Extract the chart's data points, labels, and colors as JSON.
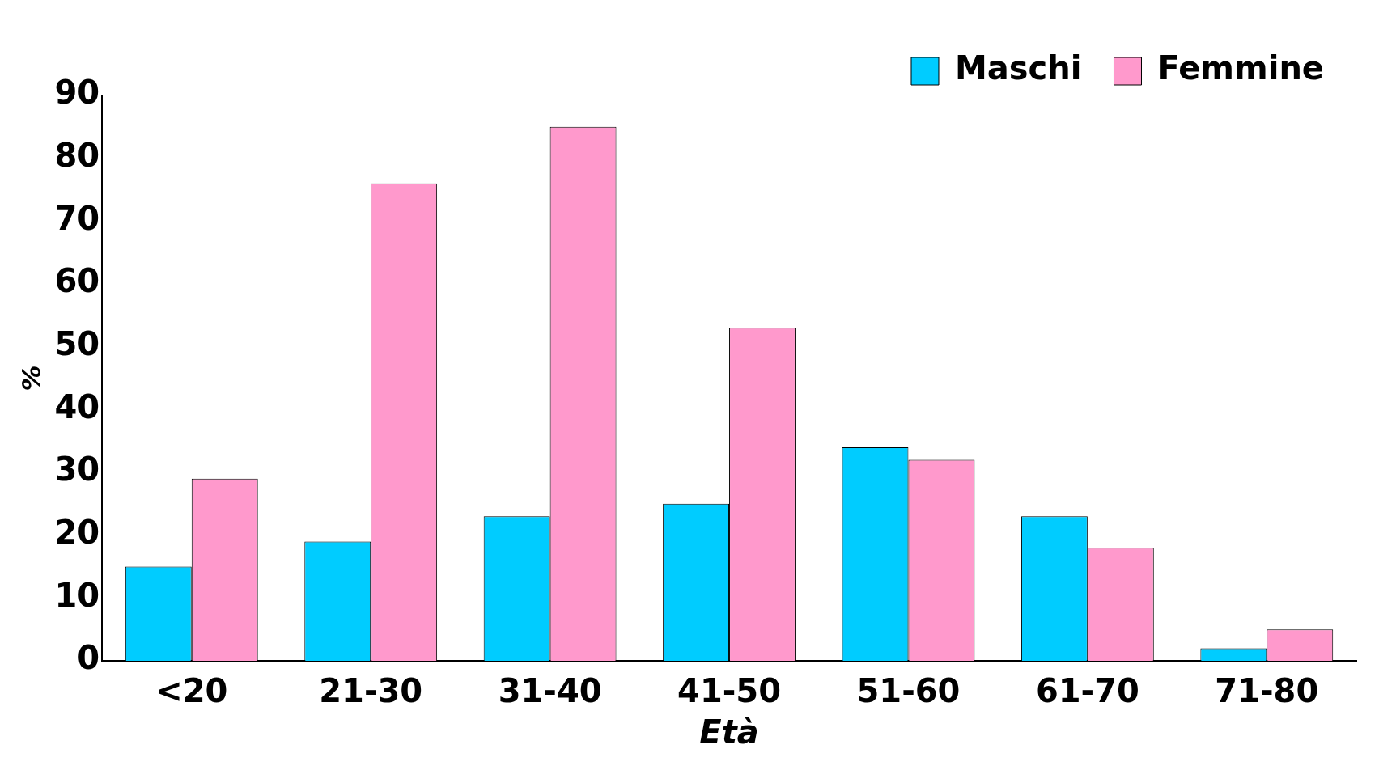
{
  "chart_data": {
    "type": "bar",
    "xlabel": "Età",
    "ylabel": "%",
    "categories": [
      "<20",
      "21-30",
      "31-40",
      "41-50",
      "51-60",
      "61-70",
      "71-80"
    ],
    "series": [
      {
        "name": "Maschi",
        "color": "#00ccff",
        "values": [
          15,
          19,
          23,
          25,
          34,
          23,
          2
        ]
      },
      {
        "name": "Femmine",
        "color": "#ff99cc",
        "values": [
          29,
          76,
          85,
          53,
          32,
          18,
          5
        ]
      }
    ],
    "ylim": [
      0,
      90
    ],
    "yticks": [
      0,
      10,
      20,
      30,
      40,
      50,
      60,
      70,
      80,
      90
    ],
    "grid": false,
    "legend": "top right"
  }
}
